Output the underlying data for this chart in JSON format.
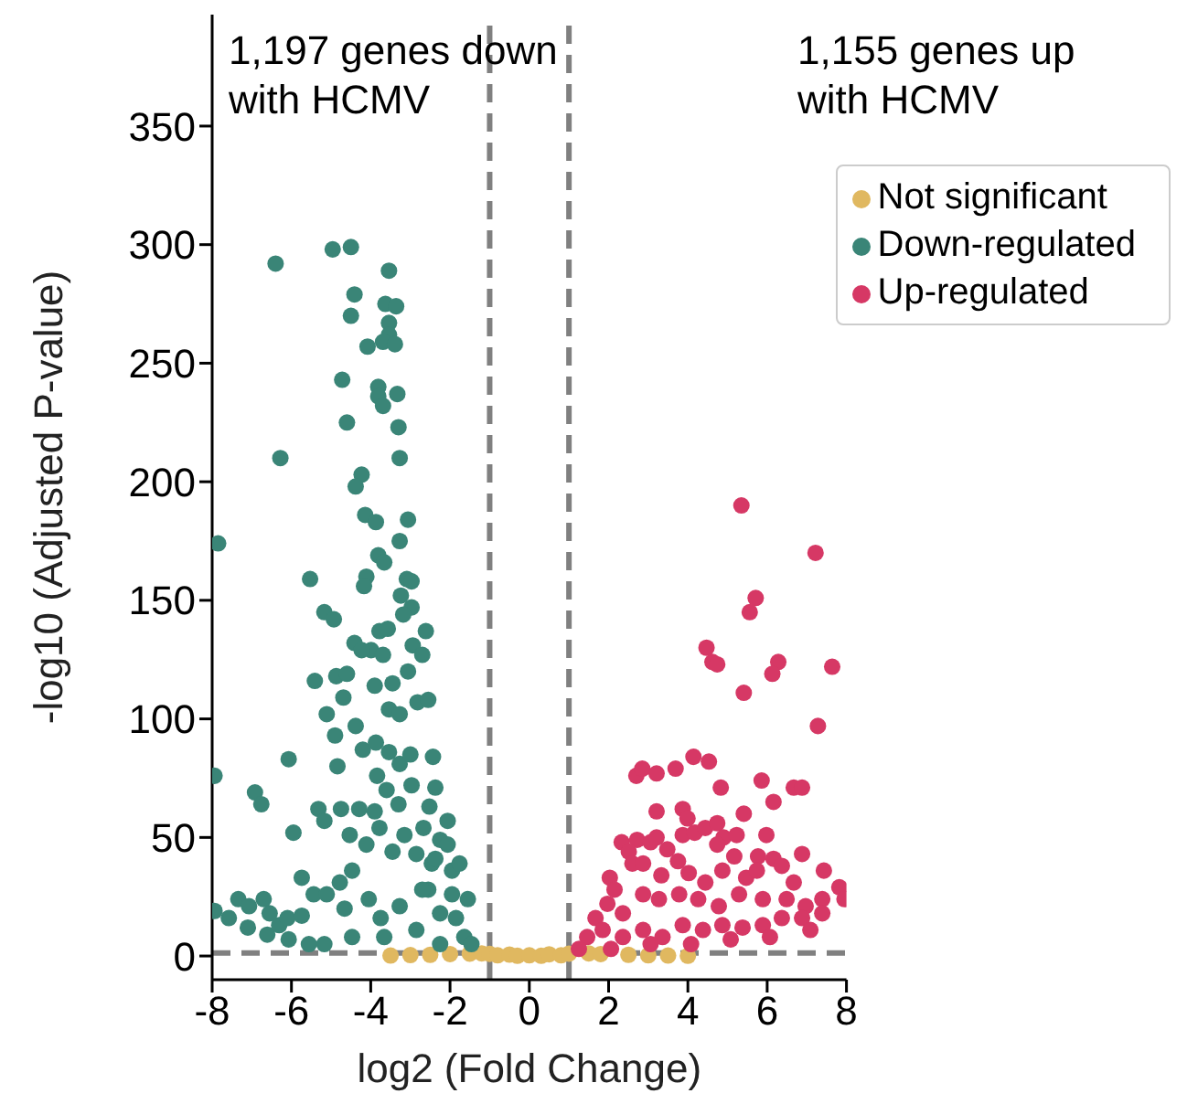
{
  "chart_data": {
    "type": "scatter",
    "xlabel": "log2 (Fold Change)",
    "ylabel": "-log10 (Adjusted P-value)",
    "xlim": [
      -8,
      8
    ],
    "xticks": [
      -8,
      -6,
      -4,
      -2,
      0,
      2,
      4,
      6,
      8
    ],
    "ylim": [
      -10,
      397
    ],
    "yticks": [
      0,
      50,
      100,
      150,
      200,
      250,
      300,
      350
    ],
    "grid": false,
    "legend": "top right",
    "marker": "circle",
    "annotations": [
      "1,197 genes down with HCMV",
      "1,155 genes up with HCMV"
    ],
    "ref_lines": [
      {
        "axis": "x",
        "value": -1,
        "label": null,
        "color": "#808080",
        "line_style": "dashed"
      },
      {
        "axis": "x",
        "value": 1,
        "label": null,
        "color": "#808080",
        "line_style": "dashed"
      },
      {
        "axis": "y",
        "value": 1.3,
        "label": null,
        "color": "#808080",
        "line_style": "dashed"
      }
    ],
    "series": [
      {
        "name": "Not significant",
        "color": "#e0b860",
        "x": [
          -3.5,
          -3,
          -2.5,
          -2,
          -1.5,
          -1.2,
          -1,
          -0.8,
          -0.5,
          -0.3,
          0,
          0.3,
          0.5,
          0.8,
          1,
          1.5,
          1.8,
          2.5,
          3,
          3.5,
          4
        ],
        "values": [
          0.2,
          0.4,
          0.5,
          0.8,
          1,
          1.1,
          0.9,
          0.3,
          0.6,
          0.1,
          0.3,
          0.1,
          0.7,
          0.3,
          1,
          1.1,
          0.8,
          0.5,
          0.3,
          0.2,
          0.1
        ]
      },
      {
        "name": "Down-regulated",
        "color": "#3a8577",
        "x": [
          -7.85,
          -7.94,
          -6.4,
          -6.28,
          -4.96,
          -4.5,
          -3.54,
          -4.41,
          -4.5,
          -3.63,
          -3.36,
          -3.54,
          -3.54,
          -3.69,
          -3.39,
          -4.08,
          -4.72,
          -3.81,
          -3.81,
          -3.69,
          -3.33,
          -4.6,
          -3.3,
          -3.27,
          -4.23,
          -4.38,
          -4.14,
          -3.87,
          -3.06,
          -3.27,
          -3.81,
          -3.66,
          -5.53,
          -4.11,
          -4.17,
          -3.09,
          -2.97,
          -3.24,
          -2.97,
          -5.17,
          -4.93,
          -3.18,
          -2.61,
          -3.78,
          -3.57,
          -4.41,
          -3.99,
          -4.23,
          -3.69,
          -2.94,
          -2.7,
          -5.41,
          -4.87,
          -4.6,
          -3.9,
          -3.45,
          -3.06,
          -4.69,
          -5.11,
          -4.38,
          -3.54,
          -3.27,
          -2.82,
          -2.55,
          -6.07,
          -4.9,
          -4.84,
          -4.2,
          -3.87,
          -3.54,
          -3.27,
          -3,
          -2.43,
          -6.92,
          -6.76,
          -3.84,
          -3.6,
          -2.97,
          -2.37,
          -5.32,
          -4.75,
          -4.29,
          -3.9,
          -3.3,
          -2.52,
          -5.95,
          -5.17,
          -4.53,
          -3.78,
          -3.15,
          -2.67,
          -2.25,
          -2.06,
          -4.11,
          -3.45,
          -2.85,
          -2.46,
          -1.95,
          -5.74,
          -4.78,
          -4.47,
          -7.34,
          -7.58,
          -7.94,
          -7.07,
          -7.1,
          -6.7,
          -6.55,
          -6.61,
          -6.31,
          -6.1,
          -6.07,
          -5.74,
          -5.44,
          -5.56,
          -5.11,
          -5.17,
          -4.66,
          -4.47,
          -4.05,
          -3.75,
          -3.66,
          -3.27,
          -2.85,
          -2.55,
          -2.25,
          -1.95,
          -1.85,
          -1.64,
          -1.46,
          -2.25,
          -1.55,
          -1.76,
          -2.06,
          -2.37,
          -2.7
        ],
        "values": [
          174,
          76,
          292,
          210,
          298,
          299,
          289,
          279,
          270,
          275,
          274,
          267,
          262,
          259,
          258,
          257,
          243,
          240,
          236,
          232,
          237,
          225,
          223,
          210,
          203,
          198,
          186,
          183,
          184,
          175,
          169,
          166,
          159,
          160,
          156,
          159,
          158,
          152,
          147,
          145,
          142,
          144,
          137,
          137,
          138,
          132,
          129,
          129,
          127,
          131,
          127,
          116,
          118,
          119,
          114,
          115,
          120,
          109,
          102,
          97,
          104,
          102,
          107,
          108,
          83,
          93,
          80,
          87,
          90,
          86,
          81,
          85,
          84,
          69,
          64,
          76,
          70,
          72,
          71,
          62,
          62,
          62,
          61,
          64,
          63,
          52,
          57,
          51,
          54,
          51,
          54,
          49,
          47,
          47,
          44,
          43,
          39,
          36,
          33,
          31,
          36,
          24,
          16,
          19,
          21,
          12,
          24,
          18,
          9,
          13,
          16,
          7,
          17,
          26,
          5,
          26,
          5,
          20,
          8,
          24,
          16,
          8,
          21,
          11,
          28,
          18,
          26,
          16,
          8,
          5,
          5,
          24,
          39,
          57,
          41,
          28
        ]
      },
      {
        "name": "Up-regulated",
        "color": "#d63865",
        "x": [
          5.35,
          7.22,
          5.71,
          5.56,
          7.64,
          4.47,
          4.62,
          4.74,
          6.28,
          6.13,
          5.41,
          7.28,
          4.14,
          4.53,
          2.7,
          2.85,
          3.21,
          3.69,
          4.83,
          5.86,
          6.16,
          6.67,
          6.88,
          3.21,
          3.87,
          3.99,
          5.41,
          2.33,
          2.72,
          3.06,
          3.21,
          3.87,
          4.17,
          4.44,
          4.74,
          4.9,
          5.23,
          5.98,
          2.51,
          3.48,
          4.74,
          5.17,
          5.77,
          6.16,
          6.88,
          6.37,
          7.43,
          2.6,
          2.87,
          3.33,
          3.75,
          4.02,
          4.44,
          4.87,
          5.47,
          5.74,
          6.67,
          7.82,
          7.95,
          2.03,
          2.15,
          1.67,
          1.97,
          2.36,
          2.87,
          3.27,
          3.78,
          4.26,
          4.78,
          5.29,
          5.89,
          6.49,
          6.97,
          7.39,
          1.46,
          1.85,
          2.36,
          2.87,
          3.36,
          3.87,
          4.38,
          4.87,
          5.38,
          5.89,
          6.37,
          6.88,
          7.39,
          1.25,
          2.06,
          3.06,
          4.08,
          5.08,
          6.07,
          7.09
        ],
        "values": [
          190,
          170,
          151,
          145,
          122,
          130,
          124,
          123,
          124,
          119,
          111,
          97,
          84,
          82,
          76,
          79,
          77,
          79,
          71,
          74,
          65,
          71,
          71,
          61,
          62,
          58,
          60,
          48,
          49,
          48,
          50,
          51,
          52,
          54,
          56,
          50,
          51,
          51,
          44,
          45,
          47,
          42,
          42,
          41,
          43,
          38,
          36,
          39,
          39,
          34,
          40,
          35,
          31,
          36,
          33,
          36,
          31,
          29,
          24,
          33,
          28,
          16,
          22,
          18,
          26,
          24,
          26,
          24,
          21,
          26,
          24,
          24,
          21,
          24,
          8,
          11,
          8,
          11,
          8,
          13,
          11,
          13,
          12,
          13,
          16,
          16,
          18,
          3,
          3,
          5,
          5,
          7,
          8,
          11
        ]
      }
    ]
  }
}
